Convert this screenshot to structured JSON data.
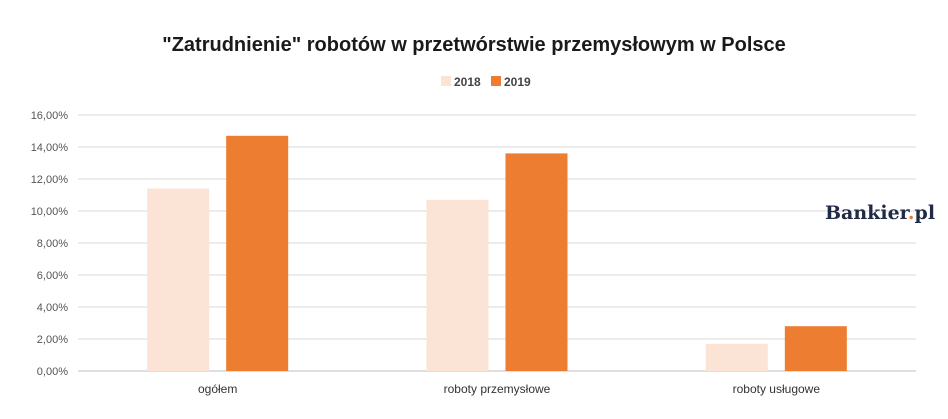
{
  "chart_data": {
    "type": "bar",
    "title": "\"Zatrudnienie\" robotów w przetwórstwie przemysłowym w Polsce",
    "categories": [
      "ogółem",
      "roboty przemysłowe",
      "roboty usługowe"
    ],
    "series": [
      {
        "name": "2018",
        "values": [
          11.4,
          10.7,
          1.7
        ],
        "color": "#fbe3d6"
      },
      {
        "name": "2019",
        "values": [
          14.7,
          13.6,
          2.8
        ],
        "color": "#ed7d31"
      }
    ],
    "ylim": [
      0,
      16
    ],
    "yticks": [
      0,
      2,
      4,
      6,
      8,
      10,
      12,
      14,
      16
    ],
    "ytick_labels": [
      "0,00%",
      "2,00%",
      "4,00%",
      "6,00%",
      "8,00%",
      "10,00%",
      "12,00%",
      "14,00%",
      "16,00%"
    ],
    "xlabel": "",
    "ylabel": "",
    "grid": true,
    "legend_position": "top-center"
  },
  "watermark": {
    "text_main": "Bankier",
    "text_dot": ".",
    "text_suffix": "pl"
  }
}
